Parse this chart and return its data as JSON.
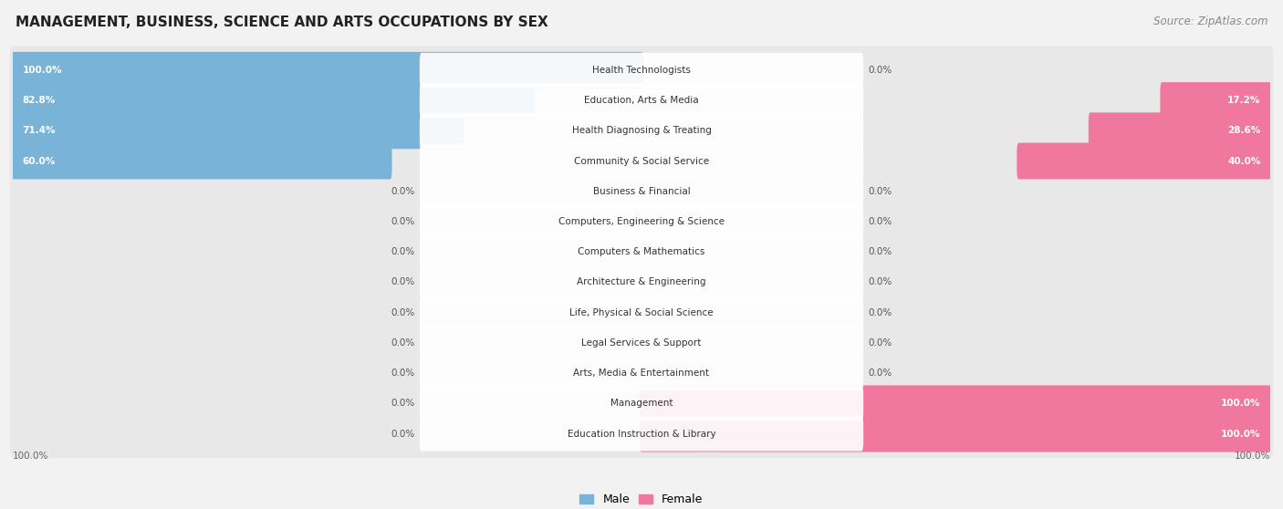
{
  "title": "MANAGEMENT, BUSINESS, SCIENCE AND ARTS OCCUPATIONS BY SEX",
  "source": "Source: ZipAtlas.com",
  "categories": [
    "Health Technologists",
    "Education, Arts & Media",
    "Health Diagnosing & Treating",
    "Community & Social Service",
    "Business & Financial",
    "Computers, Engineering & Science",
    "Computers & Mathematics",
    "Architecture & Engineering",
    "Life, Physical & Social Science",
    "Legal Services & Support",
    "Arts, Media & Entertainment",
    "Management",
    "Education Instruction & Library"
  ],
  "male": [
    100.0,
    82.8,
    71.4,
    60.0,
    0.0,
    0.0,
    0.0,
    0.0,
    0.0,
    0.0,
    0.0,
    0.0,
    0.0
  ],
  "female": [
    0.0,
    17.2,
    28.6,
    40.0,
    0.0,
    0.0,
    0.0,
    0.0,
    0.0,
    0.0,
    0.0,
    100.0,
    100.0
  ],
  "male_color": "#7ab3d8",
  "female_color": "#f0789e",
  "male_label": "Male",
  "female_label": "Female",
  "bg_color": "#f2f2f2",
  "row_bg_color": "#e8e8e8",
  "pill_color": "#ffffff",
  "title_fontsize": 11,
  "source_fontsize": 8.5,
  "bar_label_fontsize": 7.5,
  "cat_label_fontsize": 7.5,
  "legend_male_color": "#7ab3d8",
  "legend_female_color": "#f0789e"
}
